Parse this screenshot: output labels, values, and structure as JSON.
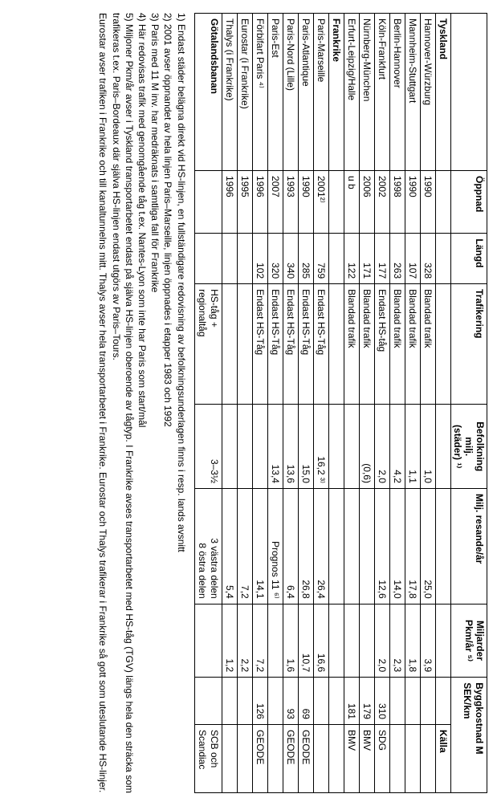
{
  "table": {
    "headers": {
      "c1": "",
      "c2": "Öppnad",
      "c3": "Längd",
      "c4": "Trafikering",
      "c5_l1": "Befolkning",
      "c5_l2": "milj.",
      "c5_l3": "(städer) ¹⁾",
      "c6": "Milj. resande/år",
      "c7_l1": "Miljarder",
      "c7_l2": "Pkm/år ⁵⁾",
      "c89_l1": "Byggkostnad M",
      "c89_l2": "SEK/km"
    },
    "section1": "Tyskland",
    "section1_source": "Källa",
    "de": [
      {
        "name": "Hannover-Würzburg",
        "open": "1990",
        "len": "328",
        "traf": "Blandad trafik",
        "pop": "1,0",
        "mres": "25,0",
        "pkm": "3,9",
        "cost": "",
        "src": ""
      },
      {
        "name": "Mannheim-Stuttgart",
        "open": "1990",
        "len": "107",
        "traf": "Blandad trafik",
        "pop": "1,1",
        "mres": "17,8",
        "pkm": "1,8",
        "cost": "",
        "src": ""
      },
      {
        "name": "Berlin-Hannover",
        "open": "1998",
        "len": "263",
        "traf": "Blandad trafik",
        "pop": "4,2",
        "mres": "14,0",
        "pkm": "2,3",
        "cost": "",
        "src": ""
      },
      {
        "name": "Köln-Frankfurt",
        "open": "2002",
        "len": "177",
        "traf": "Endast HS-tåg",
        "pop": "2,0",
        "mres": "12,6",
        "pkm": "2,0",
        "cost": "310",
        "src": "SDG"
      },
      {
        "name": "Nürnberg-München",
        "open": "2006",
        "len": "171",
        "traf": "Blandad trafik",
        "pop": "(0,6)",
        "mres": "",
        "pkm": "",
        "cost": "179",
        "src": "BMV"
      },
      {
        "name": "Erfurt-Leipzig/Halle",
        "open": "u b",
        "len": "122",
        "traf": "Blandad trafik",
        "pop": "",
        "mres": "",
        "pkm": "",
        "cost": "181",
        "src": "BMV"
      }
    ],
    "section2": "Frankrike",
    "fr": [
      {
        "name": "Paris-Marseille",
        "open": "2001²⁾",
        "len": "759",
        "traf": "Endast HS-Tåg",
        "pop": "16,2 ³⁾",
        "mres": "26,4",
        "pkm": "16,6",
        "cost": "",
        "src": ""
      },
      {
        "name": "Paris-Atlantique",
        "open": "1990",
        "len": "285",
        "traf": "Endast HS-Tåg",
        "pop": "15,0",
        "mres": "26,8",
        "pkm": "10,7",
        "cost": "69",
        "src": "GEODE"
      },
      {
        "name": "Paris-Nord (Lille)",
        "open": "1993",
        "len": "340",
        "traf": "Endast HS-Tåg",
        "pop": "13,6",
        "mres": "6,4",
        "pkm": "1,6",
        "cost": "93",
        "src": "GEODE"
      },
      {
        "name": "Paris-Est",
        "open": "2007",
        "len": "320",
        "traf": "Endast HS-Tåg",
        "pop": "13,4",
        "mres": "Prognos 11 ⁶⁾",
        "pkm": "",
        "cost": "",
        "src": ""
      },
      {
        "name": "Förbifart Paris ⁴⁾",
        "open": "1996",
        "len": "102",
        "traf": "Endast HS-Tåg",
        "pop": "",
        "mres": "14,1",
        "pkm": "7,2",
        "cost": "126",
        "src": "GEODE"
      },
      {
        "name": "Eurostar (i Frankrike)",
        "open": "1995",
        "len": "",
        "traf": "",
        "pop": "",
        "mres": "7,2",
        "pkm": "2,2",
        "cost": "",
        "src": ""
      },
      {
        "name": "Thalys (i Frankrike)",
        "open": "1996",
        "len": "",
        "traf": "",
        "pop": "",
        "mres": "5,4",
        "pkm": "1,2",
        "cost": "",
        "src": ""
      }
    ],
    "got": {
      "name": "Götalandsbanan",
      "traf_l1": "HS-tåg +",
      "traf_l2": "regionaltåg",
      "pop": "3–3½",
      "mres_l1": "3 västra delen",
      "mres_l2": "8 östra delen",
      "src_l1": "SCB och",
      "src_l2": "Scandiac"
    }
  },
  "notes": {
    "n1": "1) Endast städer belägna direkt vid HS-linjen, en fullständigare redovisning av befolkningsunderlagen finns i resp. lands avsnitt",
    "n2": "2) 2001 avser öppnandet av hela linjen Paris–Marseille, linjen öppnades i etapper 1983 och 1992",
    "n3": "3) Paris med 11 M inv. har medräknats i samtliga fall för Frankrike",
    "n4": "4) Här redovisas trafik med genomgående tåg t.ex. Nantes-Lyon som inte har Paris som start/mål",
    "n5": "5) Miljoner Pkm/år avser i Tyskland transportarbetet endast på själva HS-linjen oberoende av tågtyp. I Frankrike avses transportarbetet med HS-tåg (TGV) längs hela den sträcka som trafikeras t.ex. Paris–Bordeaux där själva HS-linjen endast utgörs av Paris–Tours.",
    "n5b": "Eurostar avser trafiken i Frankrike och till kanaltunnelns mitt. Thalys avser hela transportarbetet i Frankrike. Eurostar och Thalys trafikerar i Frankrike så gott som uteslutande HS-linjer."
  }
}
